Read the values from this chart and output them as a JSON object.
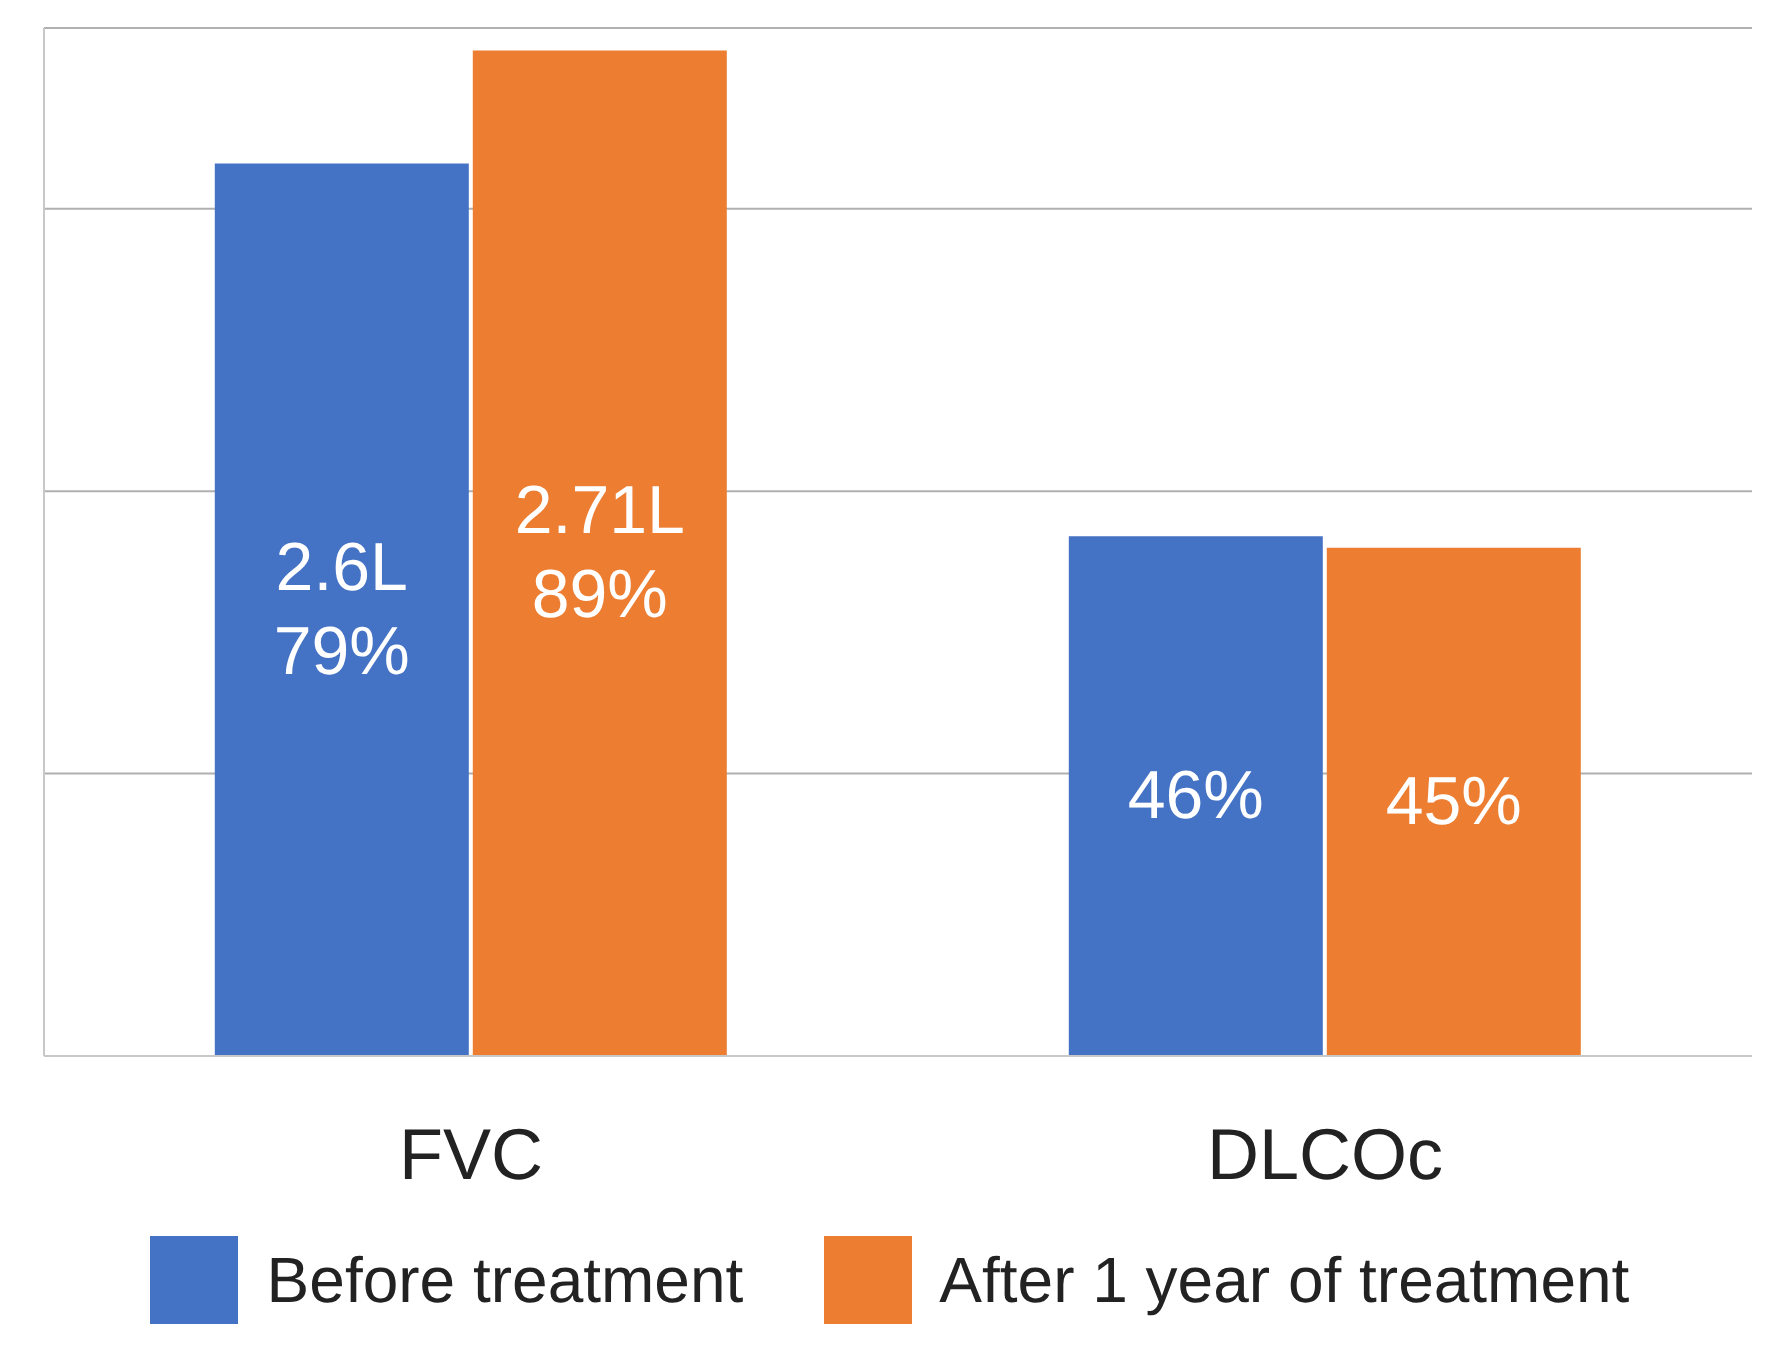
{
  "chart_data": {
    "type": "bar",
    "categories": [
      "FVC",
      "DLCOc"
    ],
    "series": [
      {
        "name": "Before treatment",
        "color": "#4472c4",
        "values": [
          79,
          46
        ],
        "value_labels": [
          "2.6L\n79%",
          "46%"
        ]
      },
      {
        "name": "After 1 year of treatment",
        "color": "#ed7d31",
        "values": [
          89,
          45
        ],
        "value_labels": [
          "2.71L\n89%",
          "45%"
        ]
      }
    ],
    "ylim": [
      0,
      91
    ],
    "grid": "y",
    "legend": "bottom"
  }
}
